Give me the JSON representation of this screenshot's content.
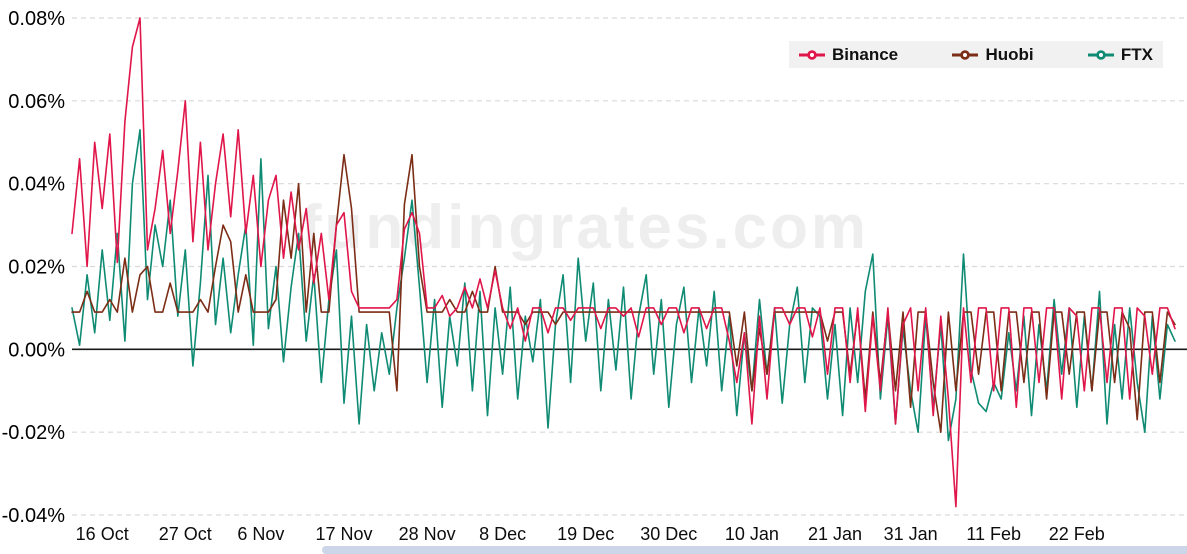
{
  "chart_data": {
    "type": "line",
    "title": "",
    "watermark": "fundingrates.com",
    "x_unit": "day-index from 12 Oct",
    "days": 147,
    "grid": "dashed-horizontal",
    "legend_position": "top-right",
    "zero_line": true,
    "ylim": [
      -0.04,
      0.08
    ],
    "y_ticks": [
      0.08,
      0.06,
      0.04,
      0.02,
      0,
      -0.02,
      -0.04
    ],
    "y_tick_labels": [
      "0.08%",
      "0.06%",
      "0.04%",
      "0.02%",
      "0.00%",
      "-0.02%",
      "-0.04%"
    ],
    "x_tick_days": [
      4,
      15,
      25,
      36,
      47,
      57,
      68,
      79,
      90,
      101,
      111,
      122,
      133
    ],
    "x_tick_labels": [
      "16 Oct",
      "27 Oct",
      "6 Nov",
      "17 Nov",
      "28 Nov",
      "8 Dec",
      "19 Dec",
      "30 Dec",
      "10 Jan",
      "21 Jan",
      "31 Jan",
      "11 Feb",
      "22 Feb"
    ],
    "y_value_format": "percent",
    "series": [
      {
        "name": "Binance",
        "color": "#e0164a",
        "values": [
          0.028,
          0.046,
          0.02,
          0.05,
          0.034,
          0.052,
          0.021,
          0.055,
          0.073,
          0.08,
          0.024,
          0.034,
          0.048,
          0.028,
          0.043,
          0.06,
          0.026,
          0.05,
          0.024,
          0.04,
          0.052,
          0.032,
          0.053,
          0.028,
          0.042,
          0.02,
          0.036,
          0.042,
          0.022,
          0.038,
          0.024,
          0.034,
          0.016,
          0.028,
          0.012,
          0.03,
          0.033,
          0.014,
          0.01,
          0.01,
          0.01,
          0.01,
          0.01,
          0.012,
          0.029,
          0.033,
          0.028,
          0.01,
          0.01,
          0.013,
          0.008,
          0.01,
          0.015,
          0.01,
          0.017,
          0.01,
          0.019,
          0.01,
          0.005,
          0.01,
          0.002,
          0.01,
          0.01,
          0.004,
          0.01,
          0.01,
          0.007,
          0.01,
          0.01,
          0.01,
          0.005,
          0.01,
          0.01,
          0.008,
          0.01,
          0.003,
          0.01,
          0.01,
          0.006,
          0.01,
          0.01,
          0.004,
          0.01,
          0.01,
          0.005,
          0.01,
          0.01,
          0.002,
          -0.008,
          0.004,
          -0.018,
          0.008,
          -0.012,
          0.01,
          0.01,
          0.006,
          0.01,
          0.01,
          0.003,
          0.01,
          -0.006,
          0.01,
          0.01,
          -0.008,
          0.01,
          -0.015,
          0.008,
          -0.01,
          0.01,
          -0.018,
          0.006,
          0.01,
          -0.01,
          0.01,
          -0.016,
          0.008,
          -0.012,
          -0.038,
          0.01,
          -0.008,
          0.01,
          0.01,
          -0.01,
          0.01,
          0.01,
          -0.014,
          0.01,
          0.01,
          -0.008,
          0.01,
          0.01,
          -0.012,
          0.01,
          0.008,
          -0.01,
          0.01,
          0.01,
          -0.008,
          0.01,
          0.01,
          -0.012,
          0.01,
          0.008,
          -0.006,
          0.01,
          0.01,
          0.005
        ]
      },
      {
        "name": "Huobi",
        "color": "#7c2d16",
        "values": [
          0.009,
          0.009,
          0.014,
          0.009,
          0.009,
          0.012,
          0.009,
          0.022,
          0.009,
          0.018,
          0.02,
          0.009,
          0.009,
          0.016,
          0.009,
          0.009,
          0.009,
          0.012,
          0.009,
          0.02,
          0.03,
          0.026,
          0.009,
          0.018,
          0.009,
          0.009,
          0.009,
          0.012,
          0.036,
          0.022,
          0.04,
          0.009,
          0.028,
          0.009,
          0.009,
          0.03,
          0.047,
          0.034,
          0.009,
          0.009,
          0.009,
          0.009,
          0.009,
          -0.01,
          0.035,
          0.047,
          0.02,
          0.009,
          0.009,
          0.009,
          0.012,
          0.009,
          0.009,
          0.014,
          0.009,
          0.009,
          0.02,
          0.009,
          0.009,
          0.009,
          0.006,
          0.009,
          0.009,
          0.009,
          0.006,
          0.009,
          0.009,
          0.009,
          0.009,
          0.009,
          0.009,
          0.009,
          0.009,
          0.009,
          0.009,
          0.009,
          0.009,
          0.009,
          0.009,
          0.009,
          0.009,
          0.009,
          0.009,
          0.009,
          0.009,
          0.009,
          0.009,
          0.009,
          -0.004,
          0.009,
          -0.01,
          0.005,
          -0.006,
          0.009,
          0.009,
          0.009,
          0.009,
          0.009,
          0.009,
          0.009,
          0.002,
          0.009,
          0.009,
          -0.006,
          0.009,
          -0.012,
          0.009,
          -0.008,
          0.009,
          -0.01,
          0.009,
          -0.014,
          0.009,
          0.009,
          -0.008,
          -0.02,
          0.009,
          -0.01,
          0.009,
          0.009,
          -0.006,
          0.009,
          0.009,
          -0.01,
          0.009,
          0.009,
          -0.008,
          0.009,
          0.009,
          -0.012,
          0.009,
          0.009,
          -0.006,
          0.009,
          0.009,
          -0.01,
          0.009,
          0.009,
          -0.008,
          0.009,
          0.005,
          -0.017,
          0.009,
          0.009,
          -0.008,
          0.009,
          0.006
        ]
      },
      {
        "name": "FTX",
        "color": "#0f8b74",
        "values": [
          0.01,
          0.001,
          0.018,
          0.004,
          0.024,
          0.007,
          0.028,
          0.002,
          0.04,
          0.053,
          0.012,
          0.03,
          0.02,
          0.036,
          0.008,
          0.024,
          -0.004,
          0.016,
          0.042,
          0.006,
          0.022,
          0.004,
          0.018,
          0.03,
          0.001,
          0.046,
          0.005,
          0.02,
          -0.003,
          0.015,
          0.028,
          0.002,
          0.018,
          -0.008,
          0.012,
          0.024,
          -0.013,
          0.008,
          -0.018,
          0.006,
          -0.01,
          0.004,
          -0.006,
          0.01,
          0.022,
          0.036,
          0.015,
          -0.008,
          0.012,
          -0.014,
          0.008,
          -0.004,
          0.016,
          -0.01,
          0.014,
          -0.016,
          0.01,
          -0.006,
          0.015,
          -0.012,
          0.008,
          -0.003,
          0.012,
          -0.019,
          0.006,
          0.018,
          -0.008,
          0.022,
          0.002,
          0.016,
          -0.01,
          0.012,
          -0.005,
          0.015,
          -0.012,
          0.008,
          0.018,
          -0.006,
          0.012,
          -0.014,
          0.006,
          0.015,
          -0.008,
          0.01,
          -0.004,
          0.014,
          -0.01,
          0.008,
          -0.016,
          0.004,
          -0.01,
          0.012,
          -0.006,
          0.01,
          -0.013,
          0.006,
          0.015,
          -0.008,
          0.01,
          0.008,
          -0.012,
          0.006,
          -0.016,
          0.01,
          -0.008,
          0.014,
          0.023,
          -0.012,
          0.008,
          -0.018,
          0.005,
          -0.01,
          -0.02,
          0.008,
          -0.014,
          0.006,
          -0.022,
          -0.012,
          0.023,
          -0.005,
          -0.013,
          -0.015,
          -0.008,
          -0.012,
          0.004,
          -0.01,
          0.008,
          -0.016,
          0.006,
          -0.01,
          0.012,
          -0.006,
          0.01,
          -0.014,
          0.008,
          -0.01,
          0.014,
          -0.018,
          0.006,
          -0.012,
          0.01,
          -0.008,
          -0.02,
          0.008,
          -0.012,
          0.006,
          0.002
        ]
      }
    ]
  },
  "ui": {
    "scrollbar_color": "#ccd6e8",
    "legend_bg": "#f1f1f1",
    "gridline_color": "#d9d9d9",
    "zero_line_color": "#1a1a1a"
  }
}
